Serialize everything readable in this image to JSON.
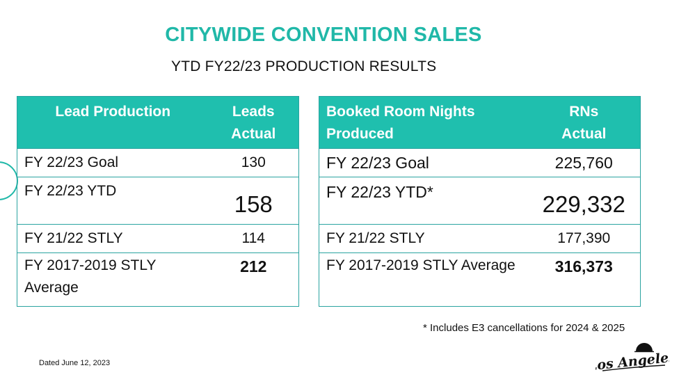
{
  "title": "CITYWIDE CONVENTION SALES",
  "subtitle": "YTD FY22/23 PRODUCTION RESULTS",
  "lead_table": {
    "headers": [
      "Lead Production",
      "Leads Actual"
    ],
    "rows": [
      {
        "label": "FY 22/23 Goal",
        "value": "130"
      },
      {
        "label": "FY 22/23 YTD",
        "value": "158"
      },
      {
        "label": "FY 21/22 STLY",
        "value": "114"
      },
      {
        "label": "FY 2017-2019 STLY Average",
        "value": "212"
      }
    ]
  },
  "rn_table": {
    "headers": [
      "Booked Room Nights Produced",
      "RNs Actual"
    ],
    "rows": [
      {
        "label": "FY 22/23 Goal",
        "value": "225,760"
      },
      {
        "label": "FY 22/23 YTD*",
        "value": "229,332"
      },
      {
        "label": "FY 21/22 STLY",
        "value": "177,390"
      },
      {
        "label": "FY 2017-2019 STLY Average",
        "value": "316,373"
      }
    ]
  },
  "footnote": "* Includes E3 cancellations for 2024 & 2025",
  "dated": "Dated June 12, 2023",
  "logo": {
    "text": "Los Angeles",
    "icon": "los-angeles-logo",
    "color": "#111111"
  },
  "colors": {
    "accent": "#20b8a8",
    "header_bg": "#1fbfae",
    "border": "#2aa3a0"
  }
}
